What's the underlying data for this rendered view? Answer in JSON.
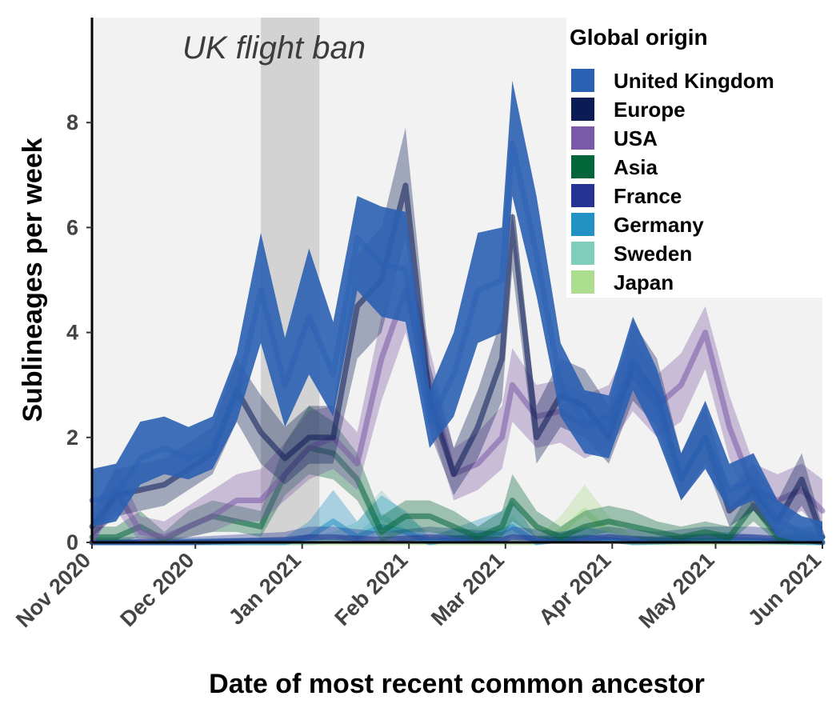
{
  "chart_data": {
    "type": "area",
    "xlabel": "Date of most recent common ancestor",
    "ylabel": "Sublineages per week",
    "xlim": [
      "2020-11-01",
      "2021-06-01"
    ],
    "ylim": [
      0,
      10
    ],
    "x_ticks": [
      "2020-11-01",
      "2020-12-01",
      "2021-01-01",
      "2021-02-01",
      "2021-03-01",
      "2021-04-01",
      "2021-05-01",
      "2021-06-01"
    ],
    "x_tick_labels": [
      "Nov 2020",
      "Dec 2020",
      "Jan 2021",
      "Feb 2021",
      "Mar 2021",
      "Apr 2021",
      "May 2021",
      "Jun 2021"
    ],
    "y_ticks": [
      0,
      2,
      4,
      6,
      8
    ],
    "y_tick_labels": [
      "0",
      "2",
      "4",
      "6",
      "8"
    ],
    "grid": false,
    "legend": {
      "title": "Global origin",
      "position": "top-right"
    },
    "annotation": {
      "text": "UK flight ban",
      "start": "2020-12-20",
      "end": "2021-01-06",
      "color": "#d3d3d3"
    },
    "series": [
      {
        "name": "United Kingdom",
        "color": "#2b61b2",
        "x": [
          "2020-11-01",
          "2020-11-08",
          "2020-11-15",
          "2020-11-22",
          "2020-11-29",
          "2020-12-06",
          "2020-12-13",
          "2020-12-20",
          "2020-12-27",
          "2021-01-03",
          "2021-01-10",
          "2021-01-17",
          "2021-01-24",
          "2021-01-31",
          "2021-02-07",
          "2021-02-14",
          "2021-02-21",
          "2021-02-28",
          "2021-03-03",
          "2021-03-10",
          "2021-03-17",
          "2021-03-24",
          "2021-03-31",
          "2021-04-07",
          "2021-04-14",
          "2021-04-21",
          "2021-04-28",
          "2021-05-05",
          "2021-05-12",
          "2021-05-19",
          "2021-05-26",
          "2021-06-01"
        ],
        "y": [
          0.8,
          0.9,
          1.6,
          1.8,
          1.6,
          1.8,
          2.8,
          4.8,
          3.0,
          4.3,
          3.2,
          5.8,
          5.3,
          5.2,
          2.3,
          3.2,
          4.8,
          5.0,
          7.6,
          5.5,
          3.0,
          2.3,
          2.2,
          3.5,
          2.6,
          1.2,
          2.0,
          1.0,
          1.2,
          0.4,
          0.2,
          0.1
        ],
        "lower": [
          0.3,
          0.4,
          1.1,
          1.3,
          1.2,
          1.4,
          2.3,
          3.8,
          2.2,
          3.2,
          2.4,
          4.8,
          4.3,
          4.2,
          1.8,
          2.4,
          3.8,
          4.0,
          6.6,
          4.7,
          2.4,
          1.7,
          1.6,
          2.9,
          2.0,
          0.8,
          1.4,
          0.6,
          0.8,
          0.1,
          0.0,
          0.0
        ],
        "upper": [
          1.4,
          1.5,
          2.3,
          2.4,
          2.2,
          2.4,
          3.6,
          5.9,
          3.9,
          5.6,
          4.2,
          6.6,
          6.4,
          6.3,
          2.9,
          4.0,
          5.9,
          6.0,
          8.8,
          6.6,
          3.8,
          2.9,
          2.8,
          4.3,
          3.3,
          1.7,
          2.7,
          1.5,
          1.7,
          0.8,
          0.5,
          0.4
        ]
      },
      {
        "name": "Europe",
        "color": "#0b1c55",
        "x": [
          "2020-11-01",
          "2020-11-08",
          "2020-11-15",
          "2020-11-22",
          "2020-11-29",
          "2020-12-06",
          "2020-12-13",
          "2020-12-20",
          "2020-12-27",
          "2021-01-03",
          "2021-01-10",
          "2021-01-17",
          "2021-01-24",
          "2021-01-31",
          "2021-02-07",
          "2021-02-14",
          "2021-02-21",
          "2021-02-28",
          "2021-03-03",
          "2021-03-10",
          "2021-03-17",
          "2021-03-24",
          "2021-03-31",
          "2021-04-07",
          "2021-04-14",
          "2021-04-21",
          "2021-04-28",
          "2021-05-05",
          "2021-05-12",
          "2021-05-19",
          "2021-05-26",
          "2021-06-01"
        ],
        "y": [
          0.3,
          0.9,
          1.0,
          1.1,
          1.4,
          1.7,
          2.9,
          2.1,
          1.6,
          2.0,
          2.0,
          4.5,
          5.0,
          6.8,
          2.7,
          1.3,
          2.2,
          3.5,
          6.2,
          2.0,
          2.8,
          2.6,
          2.0,
          3.4,
          2.8,
          1.2,
          2.0,
          0.6,
          1.0,
          0.4,
          1.2,
          0.1
        ],
        "lower": [
          0.1,
          0.5,
          0.6,
          0.7,
          1.0,
          1.3,
          2.3,
          1.5,
          1.1,
          1.5,
          1.5,
          3.5,
          4.0,
          5.8,
          2.1,
          0.9,
          1.6,
          2.7,
          5.2,
          1.5,
          2.2,
          2.0,
          1.5,
          2.7,
          2.2,
          0.8,
          1.5,
          0.3,
          0.6,
          0.1,
          0.7,
          0.0
        ],
        "upper": [
          0.6,
          1.4,
          1.5,
          1.6,
          1.9,
          2.2,
          3.5,
          2.8,
          2.2,
          2.6,
          2.6,
          5.5,
          6.0,
          7.9,
          3.4,
          1.8,
          2.9,
          4.3,
          6.3,
          2.6,
          3.5,
          3.3,
          2.6,
          4.2,
          3.5,
          1.7,
          2.6,
          1.0,
          1.5,
          0.8,
          1.7,
          0.3
        ]
      },
      {
        "name": "USA",
        "color": "#7a5aa6",
        "x": [
          "2020-11-01",
          "2020-11-08",
          "2020-11-15",
          "2020-11-22",
          "2020-11-29",
          "2020-12-06",
          "2020-12-13",
          "2020-12-20",
          "2020-12-27",
          "2021-01-03",
          "2021-01-10",
          "2021-01-17",
          "2021-01-24",
          "2021-01-31",
          "2021-02-07",
          "2021-02-14",
          "2021-02-21",
          "2021-02-28",
          "2021-03-03",
          "2021-03-10",
          "2021-03-17",
          "2021-03-24",
          "2021-03-31",
          "2021-04-07",
          "2021-04-14",
          "2021-04-21",
          "2021-04-28",
          "2021-05-05",
          "2021-05-12",
          "2021-05-19",
          "2021-05-26",
          "2021-06-01"
        ],
        "y": [
          0.0,
          1.0,
          0.2,
          0.1,
          0.3,
          0.5,
          0.8,
          0.8,
          1.3,
          1.8,
          2.0,
          1.5,
          3.5,
          4.8,
          3.0,
          1.3,
          1.5,
          2.0,
          3.0,
          2.4,
          2.5,
          2.2,
          2.4,
          3.2,
          2.6,
          3.0,
          4.0,
          2.2,
          1.0,
          0.8,
          1.0,
          0.6
        ],
        "lower": [
          0.0,
          0.6,
          0.0,
          0.0,
          0.1,
          0.2,
          0.4,
          0.4,
          0.8,
          1.2,
          1.4,
          1.0,
          2.7,
          4.0,
          2.3,
          0.8,
          1.0,
          1.4,
          2.3,
          1.8,
          1.9,
          1.6,
          1.8,
          2.5,
          2.0,
          2.3,
          3.3,
          1.6,
          0.6,
          0.4,
          0.6,
          0.2
        ],
        "upper": [
          0.4,
          1.5,
          0.5,
          0.4,
          0.7,
          1.0,
          1.3,
          1.4,
          1.9,
          2.5,
          2.6,
          2.1,
          4.3,
          5.5,
          3.7,
          1.8,
          2.1,
          2.6,
          3.7,
          3.0,
          3.1,
          2.8,
          3.0,
          3.9,
          3.2,
          3.6,
          4.5,
          2.8,
          1.5,
          1.3,
          1.5,
          1.2
        ]
      },
      {
        "name": "Asia",
        "color": "#03653a",
        "x": [
          "2020-11-01",
          "2020-11-08",
          "2020-11-15",
          "2020-11-22",
          "2020-11-29",
          "2020-12-06",
          "2020-12-13",
          "2020-12-20",
          "2020-12-27",
          "2021-01-03",
          "2021-01-10",
          "2021-01-17",
          "2021-01-24",
          "2021-01-31",
          "2021-02-07",
          "2021-02-14",
          "2021-02-21",
          "2021-02-28",
          "2021-03-03",
          "2021-03-10",
          "2021-03-17",
          "2021-03-24",
          "2021-03-31",
          "2021-04-07",
          "2021-04-14",
          "2021-04-21",
          "2021-04-28",
          "2021-05-05",
          "2021-05-12",
          "2021-05-19",
          "2021-05-26",
          "2021-06-01"
        ],
        "y": [
          0.1,
          0.1,
          0.3,
          0.05,
          0.3,
          0.5,
          0.4,
          0.3,
          1.3,
          1.8,
          1.7,
          1.2,
          0.2,
          0.5,
          0.5,
          0.3,
          0.1,
          0.3,
          0.8,
          0.3,
          0.1,
          0.3,
          0.4,
          0.3,
          0.2,
          0.1,
          0.2,
          0.1,
          0.7,
          0.1,
          0.1,
          0.1
        ],
        "lower": [
          0.0,
          0.0,
          0.1,
          0.0,
          0.1,
          0.2,
          0.2,
          0.1,
          0.9,
          1.3,
          1.2,
          0.8,
          0.0,
          0.2,
          0.2,
          0.1,
          0.0,
          0.1,
          0.4,
          0.1,
          0.0,
          0.1,
          0.2,
          0.1,
          0.0,
          0.0,
          0.0,
          0.0,
          0.4,
          0.0,
          0.0,
          0.0
        ],
        "upper": [
          0.3,
          0.3,
          0.6,
          0.2,
          0.6,
          0.8,
          0.7,
          0.6,
          1.9,
          2.6,
          2.3,
          1.7,
          0.5,
          0.8,
          0.8,
          0.6,
          0.3,
          0.6,
          1.3,
          0.6,
          0.3,
          0.6,
          0.7,
          0.6,
          0.4,
          0.3,
          0.4,
          0.3,
          1.1,
          0.3,
          0.3,
          0.3
        ]
      },
      {
        "name": "France",
        "color": "#253494",
        "x": [
          "2020-11-01",
          "2020-11-29",
          "2020-12-27",
          "2021-01-03",
          "2021-01-10",
          "2021-01-24",
          "2021-02-07",
          "2021-02-28",
          "2021-03-03",
          "2021-03-17",
          "2021-03-31",
          "2021-04-14",
          "2021-04-28",
          "2021-05-12",
          "2021-05-26",
          "2021-06-01"
        ],
        "y": [
          0.0,
          0.0,
          0.05,
          0.1,
          0.1,
          0.05,
          0.1,
          0.05,
          0.1,
          0.05,
          0.1,
          0.05,
          0.1,
          0.1,
          0.05,
          0.0
        ],
        "lower": [
          0.0,
          0.0,
          0.0,
          0.0,
          0.0,
          0.0,
          0.0,
          0.0,
          0.0,
          0.0,
          0.0,
          0.0,
          0.0,
          0.0,
          0.0,
          0.0
        ],
        "upper": [
          0.1,
          0.1,
          0.2,
          0.3,
          0.3,
          0.2,
          0.3,
          0.2,
          0.3,
          0.2,
          0.3,
          0.2,
          0.3,
          0.3,
          0.2,
          0.1
        ]
      },
      {
        "name": "Germany",
        "color": "#2292c4",
        "x": [
          "2020-11-01",
          "2020-12-27",
          "2021-01-03",
          "2021-01-10",
          "2021-01-17",
          "2021-01-24",
          "2021-01-31",
          "2021-02-07",
          "2021-02-28",
          "2021-03-03",
          "2021-03-10",
          "2021-03-24",
          "2021-04-07",
          "2021-05-05",
          "2021-06-01"
        ],
        "y": [
          0.0,
          0.0,
          0.1,
          0.4,
          0.1,
          0.3,
          0.2,
          0.0,
          0.2,
          0.3,
          0.0,
          0.1,
          0.0,
          0.05,
          0.0
        ],
        "lower": [
          0.0,
          0.0,
          0.0,
          0.1,
          0.0,
          0.1,
          0.0,
          0.0,
          0.0,
          0.1,
          0.0,
          0.0,
          0.0,
          0.0,
          0.0
        ],
        "upper": [
          0.05,
          0.1,
          0.4,
          1.0,
          0.4,
          0.9,
          0.6,
          0.1,
          0.6,
          0.8,
          0.1,
          0.3,
          0.1,
          0.2,
          0.0
        ]
      },
      {
        "name": "Sweden",
        "color": "#7fcdbb",
        "x": [
          "2020-11-01",
          "2021-01-03",
          "2021-01-10",
          "2021-01-17",
          "2021-01-24",
          "2021-01-31",
          "2021-02-07",
          "2021-02-28",
          "2021-03-03",
          "2021-03-10",
          "2021-04-07",
          "2021-06-01"
        ],
        "y": [
          0.0,
          0.0,
          0.05,
          0.1,
          0.5,
          0.2,
          0.05,
          0.1,
          0.2,
          0.05,
          0.05,
          0.0
        ],
        "lower": [
          0.0,
          0.0,
          0.0,
          0.0,
          0.2,
          0.0,
          0.0,
          0.0,
          0.0,
          0.0,
          0.0,
          0.0
        ],
        "upper": [
          0.05,
          0.1,
          0.2,
          0.4,
          1.0,
          0.5,
          0.2,
          0.3,
          0.5,
          0.1,
          0.1,
          0.0
        ]
      },
      {
        "name": "Japan",
        "color": "#addd8e",
        "x": [
          "2020-11-01",
          "2021-03-10",
          "2021-03-17",
          "2021-03-24",
          "2021-03-31",
          "2021-04-07",
          "2021-06-01"
        ],
        "y": [
          0.0,
          0.0,
          0.2,
          0.6,
          0.2,
          0.0,
          0.0
        ],
        "lower": [
          0.0,
          0.0,
          0.0,
          0.3,
          0.0,
          0.0,
          0.0
        ],
        "upper": [
          0.0,
          0.1,
          0.5,
          1.1,
          0.5,
          0.1,
          0.0
        ]
      }
    ]
  }
}
